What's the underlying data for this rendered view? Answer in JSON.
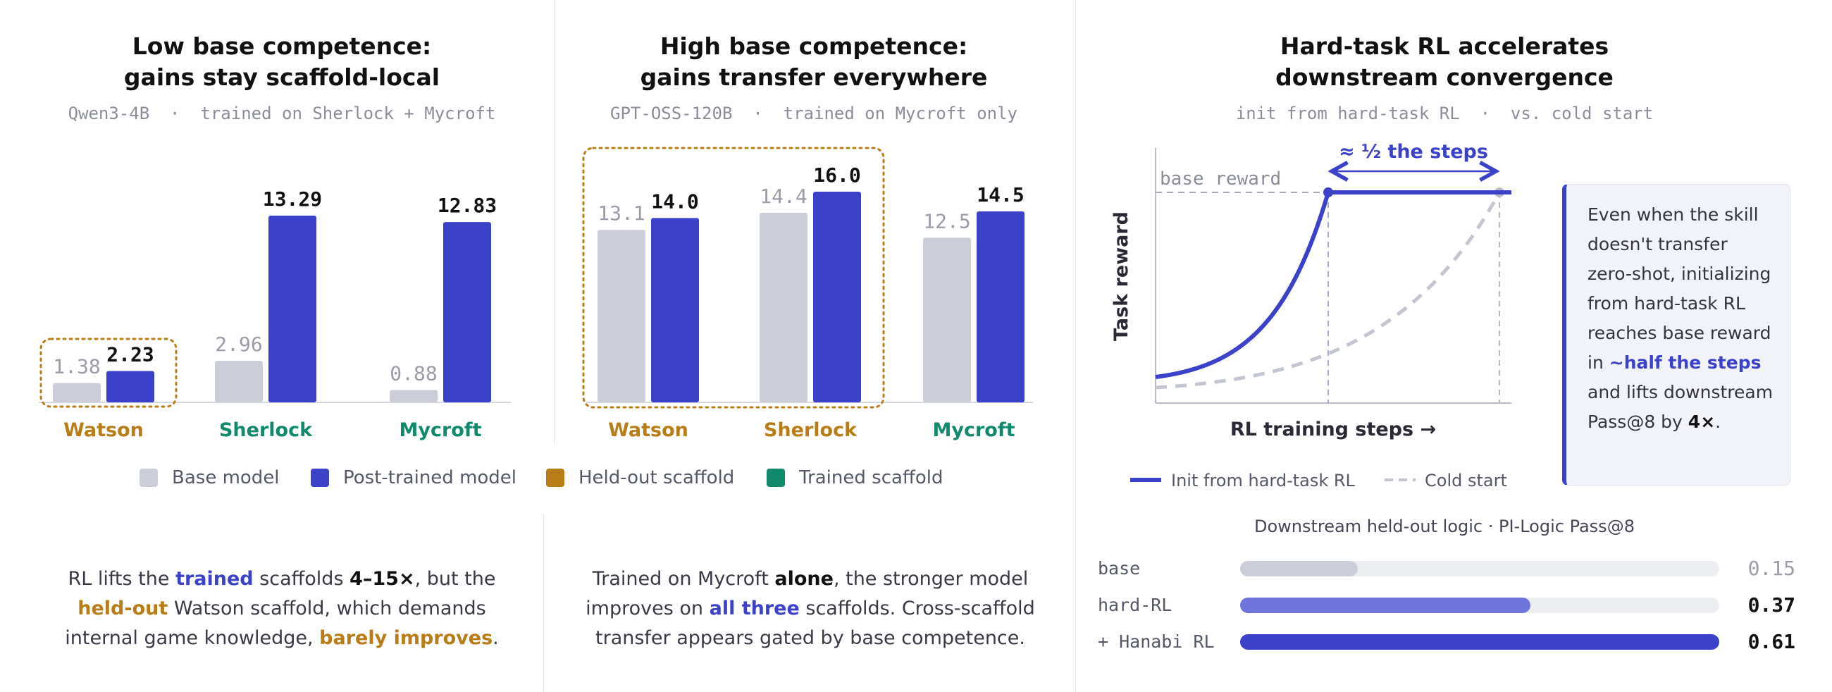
{
  "panels": [
    {
      "title_line1": "Low base competence:",
      "title_line2": "gains stay scaffold-local",
      "subtitle": "Qwen3-4B  ·  trained on Sherlock + Mycroft"
    },
    {
      "title_line1": "High base competence:",
      "title_line2": "gains transfer everywhere",
      "subtitle": "GPT-OSS-120B  ·  trained on Mycroft only"
    },
    {
      "title_line1": "Hard-task RL accelerates",
      "title_line2": "downstream convergence",
      "subtitle": "init from hard-task RL  ·  vs. cold start"
    }
  ],
  "legend": {
    "base": "Base model",
    "post": "Post-trained model",
    "heldout": "Held-out scaffold",
    "trained": "Trained scaffold"
  },
  "colors": {
    "base": "#cbced8",
    "post": "#3b41c9",
    "heldout": "#b87d16",
    "trained": "#0f8a6c",
    "post_light": "#7075dc",
    "track": "#eceef2"
  },
  "captions": {
    "left": {
      "p1": "RL lifts the ",
      "b1": "trained",
      "p2": " scaffolds ",
      "b2": "4–15×",
      "p3": ", but the ",
      "b3": "held-out",
      "p4": " Watson scaffold, which demands internal game knowledge, ",
      "b4": "barely improves",
      "p5": "."
    },
    "middle": {
      "p1": "Trained on Mycroft ",
      "b1": "alone",
      "p2": ", the stronger model improves on ",
      "b2": "all three",
      "p3": " scaffolds. Cross-scaffold transfer appears gated by base competence."
    }
  },
  "callout": {
    "p1": "Even when the skill doesn't transfer zero-shot, initializing from hard-task RL reaches base reward in ",
    "b1": "~half the steps",
    "p2": " and lifts downstream Pass@8 by ",
    "b2": "4×",
    "p3": "."
  },
  "downstream": {
    "title": "Downstream held-out logic · PI-Logic Pass@8",
    "rows": [
      {
        "label": "base",
        "value": 0.15,
        "display": "0.15"
      },
      {
        "label": "hard-RL",
        "value": 0.37,
        "display": "0.37"
      },
      {
        "label": "+ Hanabi RL",
        "value": 0.61,
        "display": "0.61"
      }
    ]
  },
  "chart_data": [
    {
      "type": "bar",
      "title": "Low base competence: gains stay scaffold-local",
      "subtitle": "Qwen3-4B · trained on Sherlock + Mycroft",
      "categories": [
        "Watson",
        "Sherlock",
        "Mycroft"
      ],
      "category_kind": [
        "heldout",
        "trained",
        "trained"
      ],
      "series": [
        {
          "name": "Base model",
          "values": [
            1.38,
            2.96,
            0.88
          ],
          "labels": [
            "1.38",
            "2.96",
            "0.88"
          ]
        },
        {
          "name": "Post-trained model",
          "values": [
            2.23,
            13.29,
            12.83
          ],
          "labels": [
            "2.23",
            "13.29",
            "12.83"
          ]
        }
      ],
      "highlight": "Watson"
    },
    {
      "type": "bar",
      "title": "High base competence: gains transfer everywhere",
      "subtitle": "GPT-OSS-120B · trained on Mycroft only",
      "categories": [
        "Watson",
        "Sherlock",
        "Mycroft"
      ],
      "category_kind": [
        "heldout",
        "heldout",
        "trained"
      ],
      "series": [
        {
          "name": "Base model",
          "values": [
            13.1,
            14.4,
            12.5
          ],
          "labels": [
            "13.1",
            "14.4",
            "12.5"
          ]
        },
        {
          "name": "Post-trained model",
          "values": [
            14.0,
            16.0,
            14.5
          ],
          "labels": [
            "14.0",
            "16.0",
            "14.5"
          ]
        }
      ],
      "highlight": "Watson, Sherlock"
    },
    {
      "type": "line",
      "title": "Hard-task RL accelerates downstream convergence",
      "subtitle": "init from hard-task RL · vs. cold start",
      "xlabel": "RL training steps →",
      "ylabel": "Task reward",
      "reference_label": "base reward",
      "annotation": "≈ ½ the steps",
      "series": [
        {
          "name": "Init from hard-task RL"
        },
        {
          "name": "Cold start"
        }
      ]
    },
    {
      "type": "bar",
      "title": "Downstream held-out logic · PI-Logic Pass@8",
      "categories": [
        "base",
        "hard-RL",
        "+ Hanabi RL"
      ],
      "values": [
        0.15,
        0.37,
        0.61
      ],
      "xlim": [
        0,
        0.61
      ]
    }
  ]
}
